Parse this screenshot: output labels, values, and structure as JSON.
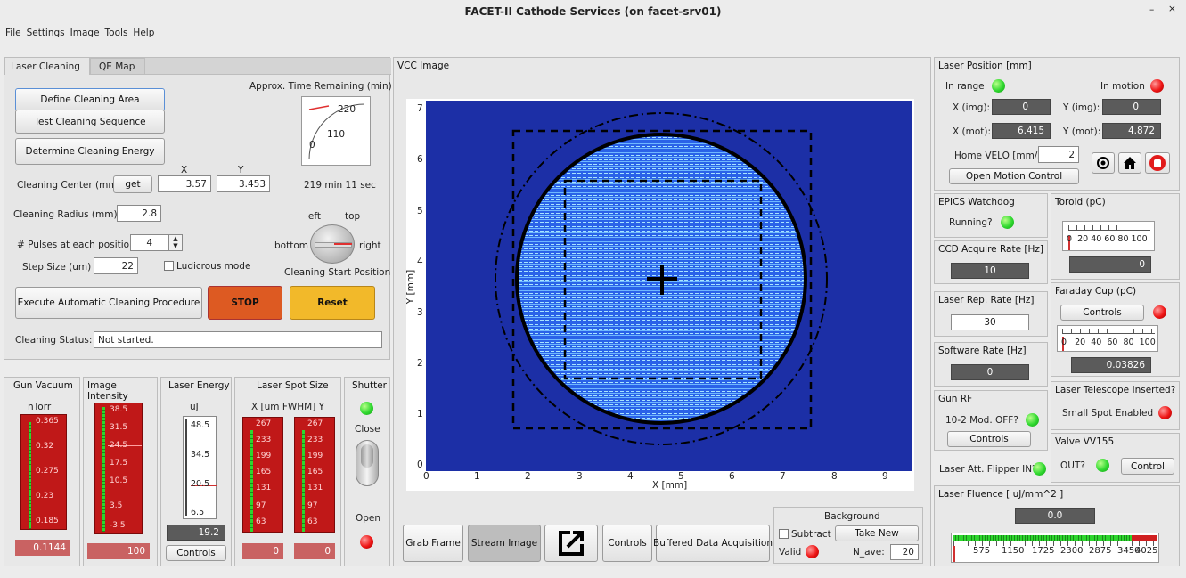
{
  "window": {
    "title": "FACET-II Cathode Services (on facet-srv01)",
    "menu": [
      "File",
      "Settings",
      "Image",
      "Tools",
      "Help"
    ]
  },
  "tabs": [
    "Laser Cleaning",
    "QE Map"
  ],
  "cleaning": {
    "define_area": "Define Cleaning Area",
    "test_seq": "Test Cleaning Sequence",
    "determine_energy": "Determine Cleaning Energy",
    "time_label": "Approx. Time Remaining (min)",
    "dial_220": "220",
    "dial_110": "110",
    "dial_0": "0",
    "time_text": "219 min 11 sec",
    "x_head": "X",
    "y_head": "Y",
    "center_label": "Cleaning Center (mm):",
    "get": "get",
    "center_x": "3.57",
    "center_y": "3.453",
    "radius_label": "Cleaning Radius (mm)",
    "radius": "2.8",
    "pulses_label": "# Pulses at each position",
    "pulses": "4",
    "step_label": "Step Size (um)",
    "step": "22",
    "ludicrous": "Ludicrous mode",
    "knob_left": "left",
    "knob_top": "top",
    "knob_bottom": "bottom",
    "knob_right": "right",
    "knob_caption": "Cleaning Start Position",
    "execute": "Execute Automatic Cleaning Procedure",
    "stop": "STOP",
    "reset": "Reset",
    "status_label": "Cleaning Status:",
    "status": "Not started."
  },
  "gun_vacuum": {
    "title": "Gun Vacuum",
    "unit": "nTorr",
    "ticks": [
      "0.365",
      "0.32",
      "0.275",
      "0.23",
      "0.185"
    ],
    "value": "0.1144"
  },
  "image_intensity": {
    "title": "Image Intensity",
    "ticks": [
      "38.5",
      "31.5",
      "24.5",
      "17.5",
      "10.5",
      "3.5",
      "-3.5"
    ],
    "value": "100"
  },
  "laser_energy": {
    "title": "Laser Energy",
    "unit": "uJ",
    "ticks": [
      "48.5",
      "34.5",
      "20.5",
      "6.5"
    ],
    "value": "19.2",
    "controls": "Controls"
  },
  "spot_size": {
    "title": "Laser Spot Size",
    "unit": "X [um FWHM] Y",
    "ticks": [
      "267",
      "233",
      "199",
      "165",
      "131",
      "97",
      "63"
    ],
    "x_value": "0",
    "y_value": "0"
  },
  "shutter": {
    "title": "Shutter",
    "close": "Close",
    "open": "Open"
  },
  "vcc": {
    "title": "VCC Image",
    "xlabel": "X [mm]",
    "ylabel": "Y [mm]",
    "xticks": [
      "0",
      "1",
      "2",
      "3",
      "4",
      "5",
      "6",
      "7",
      "8",
      "9"
    ],
    "yticks": [
      "0",
      "1",
      "2",
      "3",
      "4",
      "5",
      "6",
      "7"
    ]
  },
  "bottom_bar": {
    "grab": "Grab Frame",
    "stream": "Stream Image",
    "controls": "Controls",
    "buffered": "Buffered Data Acquisition",
    "bg_title": "Background",
    "subtract": "Subtract",
    "take_new": "Take New",
    "valid": "Valid",
    "nave_label": "N_ave:",
    "nave": "20"
  },
  "laser_pos": {
    "title": "Laser Position [mm]",
    "in_range": "In range",
    "in_motion": "In motion",
    "ximg_label": "X (img):",
    "ximg": "0",
    "yimg_label": "Y (img):",
    "yimg": "0",
    "xmot_label": "X (mot):",
    "xmot": "6.415",
    "ymot_label": "Y (mot):",
    "ymot": "4.872",
    "home_label": "Home VELO [mm/s]",
    "home": "2",
    "open_motion": "Open Motion Control"
  },
  "watchdog": {
    "title": "EPICS Watchdog",
    "running": "Running?"
  },
  "toroid": {
    "title": "Toroid (pC)",
    "scale": "0  20 40 60 80 100",
    "value": "0"
  },
  "ccd": {
    "title": "CCD Acquire Rate [Hz]",
    "value": "10"
  },
  "faraday": {
    "title": "Faraday Cup (pC)",
    "controls": "Controls",
    "scale": "0   20  40  60  80  100",
    "value": "0.03826"
  },
  "rep_rate": {
    "title": "Laser Rep. Rate [Hz]",
    "value": "30"
  },
  "sw_rate": {
    "title": "Software Rate [Hz]",
    "value": "0"
  },
  "gun_rf": {
    "title": "Gun RF",
    "mod": "10-2 Mod. OFF?",
    "controls": "Controls"
  },
  "telescope": {
    "title": "Laser Telescope Inserted?",
    "spot": "Small Spot Enabled"
  },
  "valve": {
    "title": "Valve VV155",
    "out": "OUT?",
    "control": "Control"
  },
  "flipper": {
    "label": "Laser Att. Flipper IN?"
  },
  "fluence": {
    "title": "Laser Fluence [ uJ/mm^2 ]",
    "value": "0.0",
    "ticks": [
      "575",
      "1150",
      "1725",
      "2300",
      "2875",
      "3450",
      "4025"
    ]
  }
}
